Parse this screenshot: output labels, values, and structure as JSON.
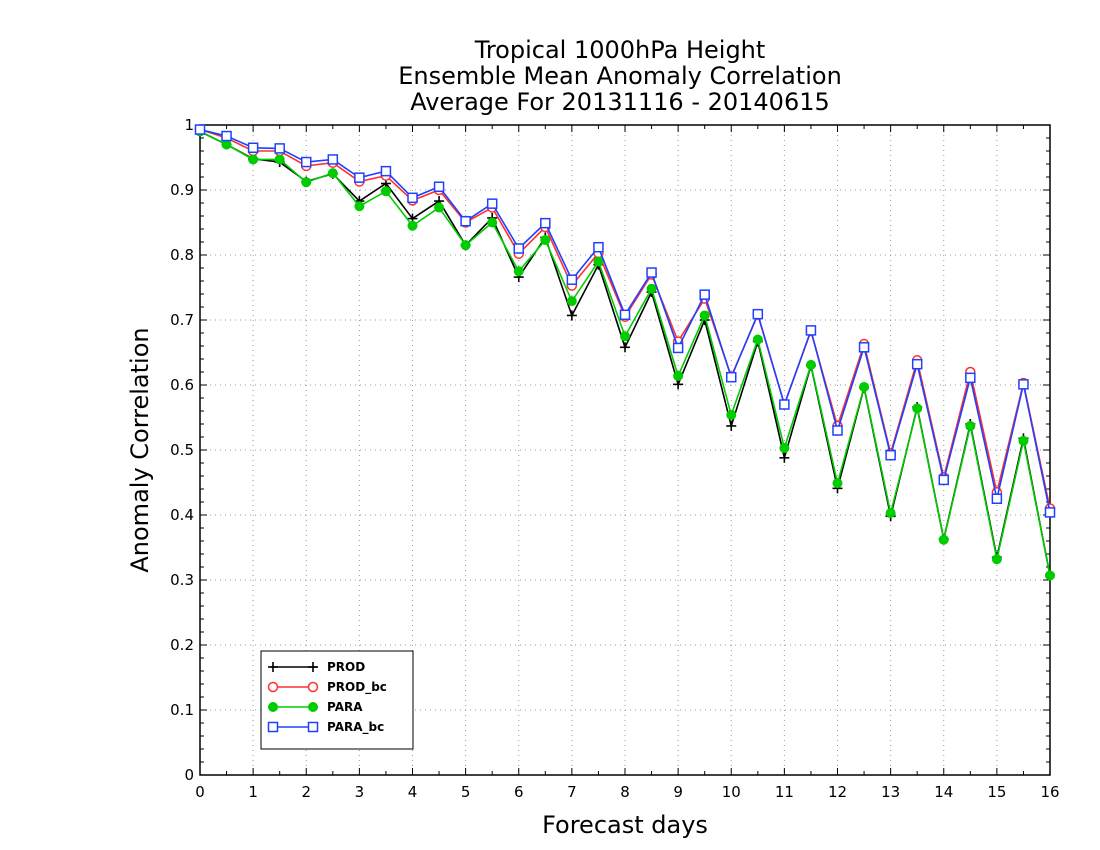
{
  "chart_data": {
    "type": "line",
    "title": [
      "Tropical 1000hPa Height",
      "Ensemble Mean Anomaly Correlation",
      "Average For 20131116 - 20140615"
    ],
    "xlabel": "Forecast days",
    "ylabel": "Anomaly Correlation",
    "xlim": [
      0,
      16
    ],
    "ylim": [
      0,
      1
    ],
    "x_ticks": [
      "0",
      "1",
      "2",
      "3",
      "4",
      "5",
      "6",
      "7",
      "8",
      "9",
      "10",
      "11",
      "12",
      "13",
      "14",
      "15",
      "16"
    ],
    "y_ticks": [
      "0",
      "0.1",
      "0.2",
      "0.3",
      "0.4",
      "0.5",
      "0.6",
      "0.7",
      "0.8",
      "0.9",
      "1"
    ],
    "grid": true,
    "legend_position": "bottom-left",
    "x": [
      0,
      0.5,
      1,
      1.5,
      2,
      2.5,
      3,
      3.5,
      4,
      4.5,
      5,
      5.5,
      6,
      6.5,
      7,
      7.5,
      8,
      8.5,
      9,
      9.5,
      10,
      10.5,
      11,
      11.5,
      12,
      12.5,
      13,
      13.5,
      14,
      14.5,
      15,
      15.5,
      16
    ],
    "series": [
      {
        "name": "PROD",
        "color": "#000000",
        "marker": "plus",
        "values": [
          0.99,
          0.97,
          0.948,
          0.943,
          0.913,
          0.925,
          0.883,
          0.91,
          0.856,
          0.883,
          0.815,
          0.857,
          0.766,
          0.827,
          0.707,
          0.785,
          0.658,
          0.743,
          0.601,
          0.7,
          0.537,
          0.667,
          0.488,
          0.63,
          0.441,
          0.596,
          0.398,
          0.566,
          0.363,
          0.54,
          0.335,
          0.518,
          0.307
        ]
      },
      {
        "name": "PROD_bc",
        "color": "#ff3030",
        "marker": "circle-open",
        "values": [
          0.993,
          0.98,
          0.96,
          0.96,
          0.937,
          0.942,
          0.913,
          0.922,
          0.884,
          0.9,
          0.85,
          0.873,
          0.802,
          0.843,
          0.753,
          0.803,
          0.705,
          0.77,
          0.667,
          0.733,
          0.613,
          0.708,
          0.57,
          0.683,
          0.537,
          0.663,
          0.495,
          0.638,
          0.458,
          0.62,
          0.435,
          0.603,
          0.41
        ]
      },
      {
        "name": "PARA",
        "color": "#00cc00",
        "marker": "circle-filled",
        "values": [
          0.99,
          0.97,
          0.947,
          0.947,
          0.912,
          0.926,
          0.875,
          0.898,
          0.845,
          0.873,
          0.815,
          0.85,
          0.775,
          0.823,
          0.729,
          0.79,
          0.675,
          0.748,
          0.614,
          0.707,
          0.554,
          0.67,
          0.503,
          0.631,
          0.449,
          0.597,
          0.403,
          0.564,
          0.362,
          0.537,
          0.332,
          0.514,
          0.307
        ]
      },
      {
        "name": "PARA_bc",
        "color": "#2040ff",
        "marker": "square-open",
        "values": [
          0.993,
          0.983,
          0.965,
          0.964,
          0.943,
          0.947,
          0.919,
          0.929,
          0.888,
          0.905,
          0.852,
          0.879,
          0.81,
          0.849,
          0.762,
          0.812,
          0.708,
          0.773,
          0.657,
          0.739,
          0.612,
          0.709,
          0.57,
          0.684,
          0.53,
          0.658,
          0.492,
          0.632,
          0.454,
          0.611,
          0.425,
          0.601,
          0.404
        ]
      }
    ]
  }
}
